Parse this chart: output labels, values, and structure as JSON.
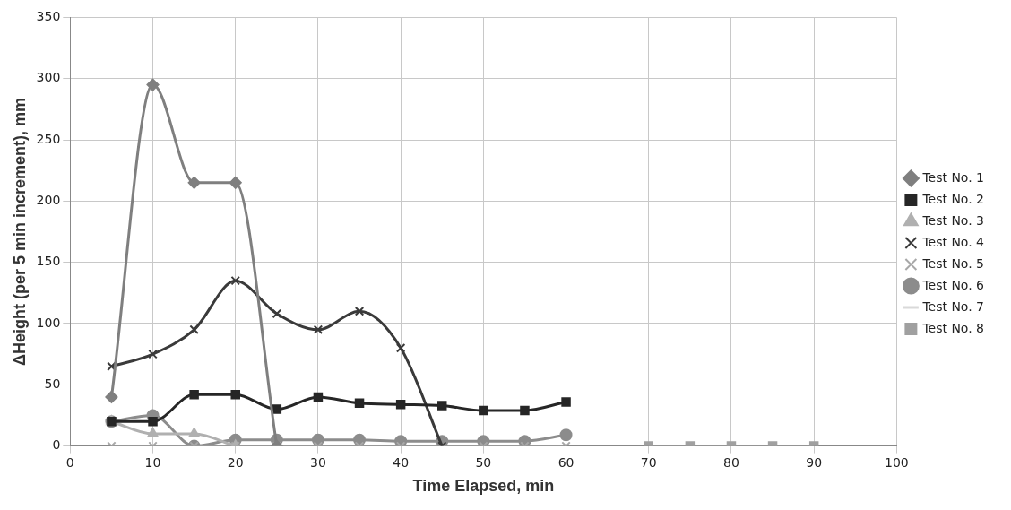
{
  "chart_data": {
    "type": "line",
    "xlabel": "Time Elapsed, min",
    "ylabel": "ΔHeight (per 5 min increment), mm",
    "xlim": [
      0,
      100
    ],
    "xticks": [
      0,
      10,
      20,
      30,
      40,
      50,
      60,
      70,
      80,
      90,
      100
    ],
    "ylim": [
      0,
      350
    ],
    "yticks": [
      0,
      50,
      100,
      150,
      200,
      250,
      300,
      350
    ],
    "grid": true,
    "legend": "right",
    "series": [
      {
        "name": "Test No. 1",
        "color": "#7f7f7f",
        "marker": "diamond",
        "x": [
          5,
          10,
          15,
          20,
          25
        ],
        "values": [
          40,
          295,
          215,
          215,
          0
        ]
      },
      {
        "name": "Test No. 2",
        "color": "#262626",
        "marker": "square",
        "x": [
          5,
          10,
          15,
          20,
          25,
          30,
          35,
          40,
          45,
          50,
          55,
          60
        ],
        "values": [
          20,
          20,
          42,
          42,
          30,
          40,
          35,
          34,
          33,
          29,
          29,
          36
        ]
      },
      {
        "name": "Test No. 3",
        "color": "#b0b0b0",
        "marker": "triangle",
        "x": [
          5,
          10,
          15,
          20
        ],
        "values": [
          20,
          10,
          10,
          0
        ]
      },
      {
        "name": "Test No. 4",
        "color": "#3a3a3a",
        "marker": "cross",
        "x": [
          5,
          10,
          15,
          20,
          25,
          30,
          35,
          40,
          45
        ],
        "values": [
          65,
          75,
          95,
          135,
          108,
          95,
          110,
          80,
          0
        ]
      },
      {
        "name": "Test No. 5",
        "color": "#a8a8a8",
        "marker": "cross",
        "x": [
          5,
          10,
          15,
          20,
          25,
          30,
          35,
          40,
          45,
          50,
          55,
          60
        ],
        "values": [
          0,
          0,
          0,
          0,
          0,
          0,
          0,
          0,
          0,
          0,
          0,
          0
        ]
      },
      {
        "name": "Test No. 6",
        "color": "#8c8c8c",
        "marker": "circle",
        "x": [
          5,
          10,
          15,
          20,
          25,
          30,
          35,
          40,
          45,
          50,
          55,
          60
        ],
        "values": [
          20,
          25,
          0,
          5,
          5,
          5,
          5,
          4,
          4,
          4,
          4,
          9
        ]
      },
      {
        "name": "Test No. 7",
        "color": "#d9d9d9",
        "marker": "none"
      },
      {
        "name": "Test No. 8",
        "color": "#a0a0a0",
        "marker": "square",
        "x": [
          70,
          75,
          80,
          85,
          90
        ],
        "values": [
          0,
          0,
          0,
          0,
          0
        ]
      }
    ]
  }
}
